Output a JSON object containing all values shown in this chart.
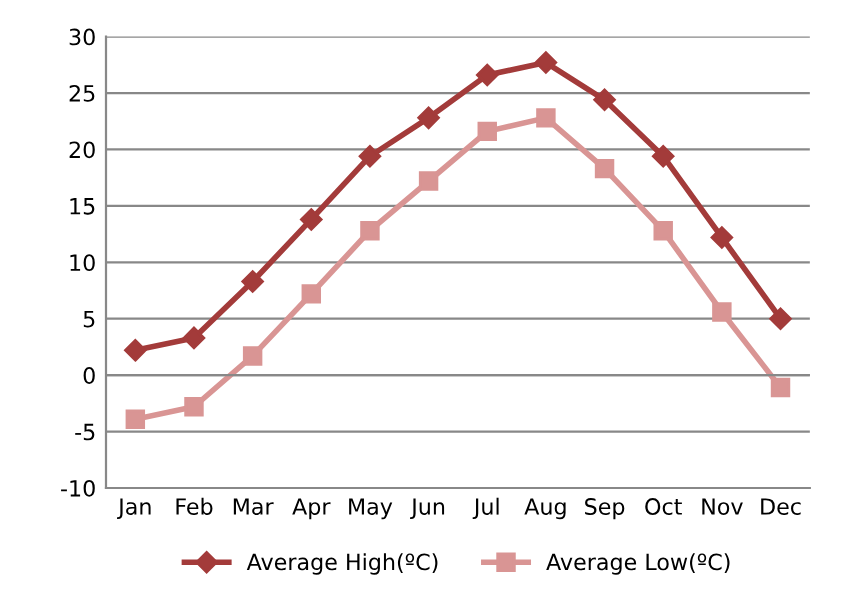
{
  "chart_data": {
    "type": "line",
    "categories": [
      "Jan",
      "Feb",
      "Mar",
      "Apr",
      "May",
      "Jun",
      "Jul",
      "Aug",
      "Sep",
      "Oct",
      "Nov",
      "Dec"
    ],
    "series": [
      {
        "name": "Average High(ºC)",
        "color": "#a33b3a",
        "marker": "diamond",
        "values": [
          2.2,
          3.3,
          8.3,
          13.8,
          19.4,
          22.8,
          26.6,
          27.7,
          24.4,
          19.4,
          12.2,
          5.0
        ]
      },
      {
        "name": "Average Low(ºC)",
        "color": "#d99594",
        "marker": "square",
        "values": [
          -3.9,
          -2.8,
          1.7,
          7.2,
          12.8,
          17.2,
          21.6,
          22.8,
          18.3,
          12.8,
          5.6,
          -1.1
        ]
      }
    ],
    "ylim": [
      -10,
      30
    ],
    "yticks": [
      -10,
      -5,
      0,
      5,
      10,
      15,
      20,
      25,
      30
    ],
    "grid": "y",
    "legend": "bottom",
    "line_style": "solid"
  }
}
